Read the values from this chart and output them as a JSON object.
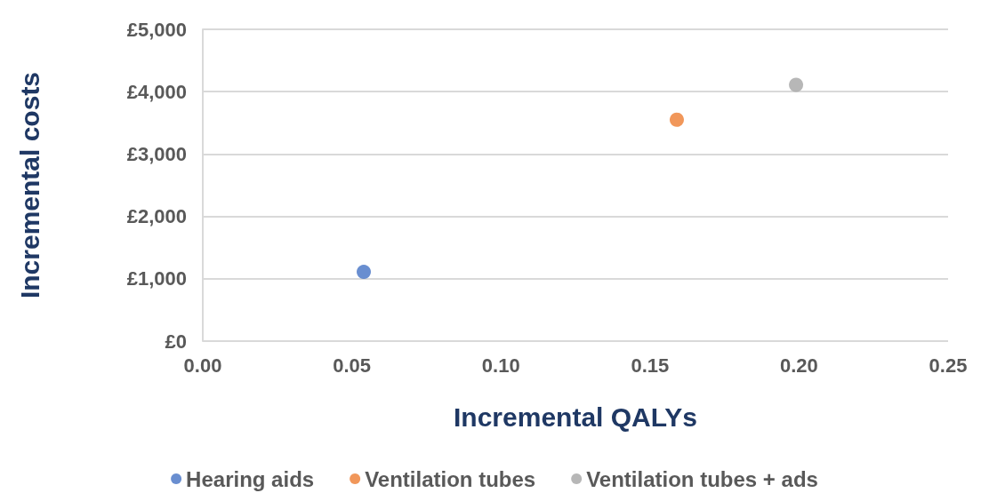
{
  "chart_data": {
    "type": "scatter",
    "xlabel": "Incremental QALYs",
    "ylabel": "Incremental costs",
    "series": [
      {
        "name": "Hearing aids",
        "color": "#4472c4",
        "x": [
          0.054
        ],
        "values": [
          1110
        ]
      },
      {
        "name": "Ventilation tubes",
        "color": "#ed7d31",
        "x": [
          0.159
        ],
        "values": [
          3550
        ]
      },
      {
        "name": "Ventilation tubes + ads",
        "color": "#a5a5a5",
        "x": [
          0.199
        ],
        "values": [
          4110
        ]
      }
    ],
    "xlim": [
      0,
      0.25
    ],
    "xticks": [
      {
        "value": 0,
        "label": "0.00"
      },
      {
        "value": 0.05,
        "label": "0.05"
      },
      {
        "value": 0.1,
        "label": "0.10"
      },
      {
        "value": 0.15,
        "label": "0.15"
      },
      {
        "value": 0.2,
        "label": "0.20"
      },
      {
        "value": 0.25,
        "label": "0.25"
      }
    ],
    "ylim": [
      0,
      5000
    ],
    "yticks": [
      {
        "value": 0,
        "label": "£0"
      },
      {
        "value": 1000,
        "label": "£1,000"
      },
      {
        "value": 2000,
        "label": "£2,000"
      },
      {
        "value": 3000,
        "label": "£3,000"
      },
      {
        "value": 4000,
        "label": "£4,000"
      },
      {
        "value": 5000,
        "label": "£5,000"
      }
    ],
    "grid": "y",
    "legend": "bottom",
    "marker": "circle"
  }
}
